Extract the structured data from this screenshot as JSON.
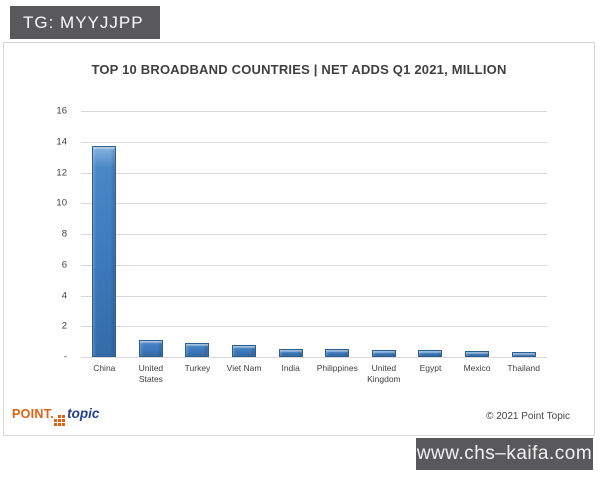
{
  "overlay": {
    "tg_badge": "TG: MYYJJPP",
    "site_badge": "www.chs–kaifa.com"
  },
  "footer": {
    "logo_point": "POINT.",
    "logo_topic": "topic",
    "copyright": "© 2021 Point Topic"
  },
  "chart_data": {
    "type": "bar",
    "title": "TOP 10 BROADBAND COUNTRIES | NET ADDS Q1 2021, MILLION",
    "categories": [
      "China",
      "United States",
      "Turkey",
      "Viet Nam",
      "India",
      "Philippines",
      "United Kingdom",
      "Egypt",
      "Mexico",
      "Thailand"
    ],
    "values": [
      13.7,
      1.1,
      0.9,
      0.8,
      0.5,
      0.5,
      0.45,
      0.45,
      0.4,
      0.35
    ],
    "xlabel": "",
    "ylabel": "",
    "ylim": [
      0,
      16
    ],
    "ytick_interval": 2,
    "ytick_labels": [
      "16",
      "14",
      "12",
      "10",
      "8",
      "6",
      "4",
      "2",
      "-"
    ],
    "grid": true,
    "legend": false,
    "bar_color": "#3C79BB",
    "bar_border_color": "#2B5F94",
    "gridline_color": "#D9D9D9"
  },
  "colors": {
    "badge_bg": "#59585A",
    "title_text": "#3F3F3F",
    "axis_text": "#404040",
    "logo_orange": "#E2600F",
    "logo_blue": "#233E94"
  }
}
